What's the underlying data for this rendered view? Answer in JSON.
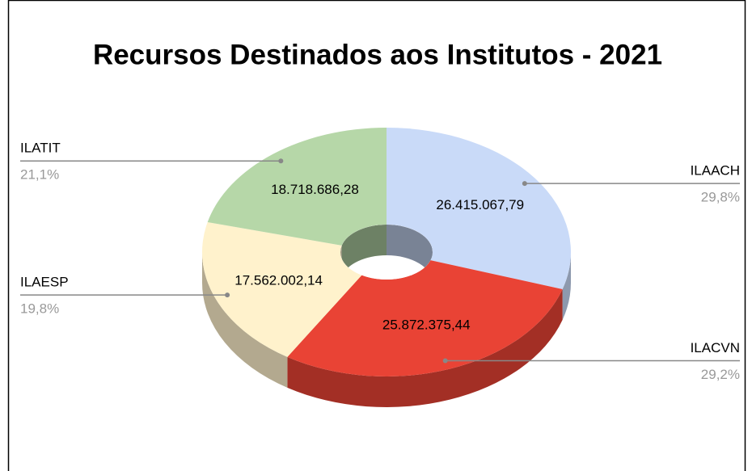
{
  "chart_data": {
    "type": "pie",
    "donut": true,
    "three_d": true,
    "title": "Recursos Destinados aos Institutos - 2021",
    "categories": [
      "ILAACH",
      "ILACVN",
      "ILAESP",
      "ILATIT"
    ],
    "values": [
      26415067.79,
      25872375.44,
      17562002.14,
      18718686.28
    ],
    "value_labels": [
      "26.415.067,79",
      "25.872.375,44",
      "17.562.002,14",
      "18.718.686,28"
    ],
    "percentages": [
      29.8,
      29.2,
      19.8,
      21.1
    ],
    "percentage_labels": [
      "29,8%",
      "29,2%",
      "19,8%",
      "21,1%"
    ],
    "colors": [
      "#c9daf8",
      "#e94335",
      "#fff2cc",
      "#b6d7a8"
    ]
  }
}
